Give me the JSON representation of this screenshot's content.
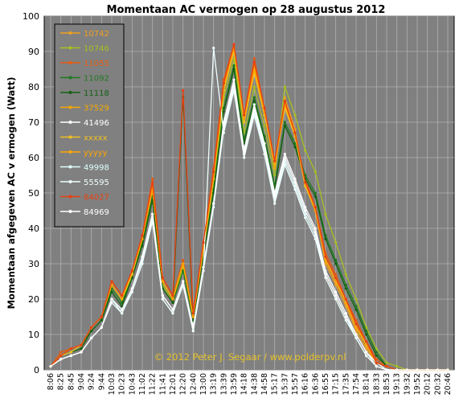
{
  "chart_data": {
    "type": "line",
    "title": "Momentaan  AC vermogen  op 28 augustus  2012",
    "ylabel": "Momentaan afgegeven AC v ermogen (Watt)",
    "xlabel": "",
    "ylim": [
      0,
      100
    ],
    "yticks": [
      0,
      10,
      20,
      30,
      40,
      50,
      60,
      70,
      80,
      90,
      100
    ],
    "grid": true,
    "legend_position": "top-left",
    "plot_background": "#808080",
    "x_tick_labels": [
      "8:06",
      "8:25",
      "8:45",
      "9:04",
      "9:24",
      "9:44",
      "10:03",
      "10:23",
      "10:43",
      "11:02",
      "11:22",
      "11:41",
      "12:01",
      "12:20",
      "12:40",
      "13:00",
      "13:19",
      "13:39",
      "13:59",
      "14:18",
      "14:38",
      "14:58",
      "15:17",
      "15:37",
      "15:57",
      "16:16",
      "16:36",
      "16:55",
      "17:15",
      "17:35",
      "17:54",
      "18:14",
      "18:33",
      "18:53",
      "19:13",
      "19:32",
      "19:52",
      "20:12",
      "20:32",
      "20:46"
    ],
    "x": [
      "8:06",
      "8:25",
      "8:45",
      "9:04",
      "9:24",
      "9:44",
      "10:03",
      "10:23",
      "10:43",
      "11:02",
      "11:22",
      "11:41",
      "12:01",
      "12:20",
      "12:40",
      "13:00",
      "13:19",
      "13:39",
      "13:59",
      "14:18",
      "14:38",
      "14:58",
      "15:17",
      "15:37",
      "15:57",
      "16:16",
      "16:36",
      "16:55",
      "17:15",
      "17:35",
      "17:54",
      "18:14",
      "18:33",
      "18:53",
      "19:13",
      "19:32",
      "19:52",
      "20:12",
      "20:32",
      "20:46"
    ],
    "series": [
      {
        "name": "10742",
        "color": "#f0a020",
        "values": [
          1,
          4,
          6,
          7,
          12,
          15,
          24,
          20,
          28,
          38,
          52,
          25,
          20,
          30,
          15,
          35,
          55,
          80,
          92,
          70,
          84,
          72,
          58,
          77,
          68,
          52,
          45,
          30,
          24,
          18,
          11,
          6,
          2,
          1,
          0,
          0,
          0,
          0,
          0,
          0
        ]
      },
      {
        "name": "10746",
        "color": "#a8c020",
        "values": [
          1,
          4,
          5,
          6,
          11,
          14,
          23,
          19,
          27,
          36,
          49,
          24,
          19,
          29,
          14,
          33,
          52,
          77,
          88,
          67,
          80,
          69,
          55,
          80,
          72,
          62,
          56,
          44,
          36,
          27,
          20,
          12,
          6,
          2,
          1,
          0,
          0,
          0,
          0,
          0
        ]
      },
      {
        "name": "11055",
        "color": "#e85a10",
        "values": [
          1,
          5,
          6,
          7,
          12,
          15,
          25,
          21,
          28,
          38,
          54,
          26,
          21,
          31,
          16,
          36,
          57,
          82,
          92,
          72,
          88,
          74,
          59,
          76,
          66,
          54,
          46,
          33,
          27,
          20,
          14,
          8,
          3,
          1,
          0,
          0,
          0,
          0,
          0,
          0
        ]
      },
      {
        "name": "11092",
        "color": "#1e7a1e",
        "values": [
          1,
          4,
          5,
          7,
          11,
          14,
          23,
          19,
          26,
          36,
          49,
          23,
          19,
          28,
          14,
          32,
          51,
          74,
          86,
          65,
          77,
          66,
          52,
          70,
          64,
          55,
          50,
          38,
          31,
          24,
          18,
          11,
          5,
          1,
          0,
          0,
          0,
          0,
          0,
          0
        ]
      },
      {
        "name": "11118",
        "color": "#156015",
        "values": [
          1,
          4,
          5,
          6,
          11,
          14,
          22,
          18,
          26,
          35,
          48,
          23,
          19,
          77,
          14,
          32,
          50,
          73,
          85,
          64,
          76,
          65,
          51,
          69,
          63,
          54,
          49,
          37,
          30,
          23,
          17,
          10,
          4,
          1,
          0,
          0,
          0,
          0,
          0,
          0
        ]
      },
      {
        "name": "37529",
        "color": "#f5a800",
        "values": [
          1,
          4,
          6,
          7,
          12,
          15,
          24,
          20,
          27,
          37,
          51,
          25,
          20,
          30,
          15,
          34,
          54,
          79,
          90,
          70,
          86,
          73,
          57,
          75,
          66,
          52,
          45,
          32,
          26,
          19,
          13,
          7,
          2,
          1,
          0,
          0,
          0,
          0,
          0,
          0
        ]
      },
      {
        "name": "41496",
        "color": "#ffffff",
        "values": [
          1,
          3,
          4,
          5,
          9,
          12,
          20,
          17,
          23,
          32,
          44,
          21,
          17,
          25,
          12,
          29,
          47,
          70,
          82,
          62,
          75,
          64,
          50,
          61,
          54,
          46,
          40,
          28,
          22,
          16,
          10,
          5,
          2,
          0,
          0,
          0,
          0,
          0,
          0,
          0
        ]
      },
      {
        "name": "xxxxx",
        "color": "#f0c020",
        "values": [
          1,
          4,
          5,
          7,
          12,
          15,
          24,
          20,
          27,
          37,
          51,
          25,
          20,
          30,
          15,
          34,
          54,
          79,
          90,
          70,
          84,
          72,
          58,
          74,
          66,
          52,
          45,
          31,
          26,
          19,
          12,
          7,
          2,
          1,
          0,
          0,
          0,
          0,
          0,
          0
        ]
      },
      {
        "name": "yyyyy",
        "color": "#ffa500",
        "values": [
          1,
          4,
          6,
          7,
          12,
          15,
          24,
          20,
          28,
          37,
          51,
          25,
          20,
          30,
          15,
          35,
          55,
          80,
          91,
          71,
          85,
          73,
          58,
          75,
          67,
          53,
          45,
          31,
          25,
          19,
          12,
          7,
          2,
          1,
          0,
          0,
          0,
          0,
          0,
          0
        ]
      },
      {
        "name": "49998",
        "color": "#e0ffff",
        "values": [
          1,
          3,
          4,
          5,
          9,
          12,
          20,
          16,
          23,
          31,
          43,
          20,
          16,
          24,
          11,
          28,
          46,
          68,
          80,
          61,
          73,
          62,
          48,
          59,
          52,
          44,
          38,
          27,
          21,
          15,
          9,
          4,
          1,
          0,
          0,
          0,
          0,
          0,
          0,
          0
        ]
      },
      {
        "name": "55595",
        "color": "#f0ffff",
        "values": [
          1,
          3,
          4,
          5,
          9,
          12,
          19,
          16,
          22,
          30,
          42,
          20,
          16,
          24,
          11,
          28,
          91,
          67,
          79,
          60,
          72,
          61,
          47,
          58,
          51,
          43,
          37,
          26,
          20,
          14,
          9,
          4,
          1,
          0,
          0,
          0,
          0,
          0,
          0,
          0
        ]
      },
      {
        "name": "84027",
        "color": "#e84010",
        "values": [
          1,
          4,
          6,
          7,
          12,
          15,
          25,
          21,
          28,
          38,
          53,
          26,
          21,
          79,
          16,
          36,
          56,
          81,
          92,
          72,
          87,
          74,
          59,
          76,
          67,
          53,
          46,
          32,
          26,
          20,
          13,
          8,
          2,
          1,
          0,
          0,
          0,
          0,
          0,
          0
        ]
      },
      {
        "name": "84969",
        "color": "#ffffff",
        "values": [
          1,
          3,
          4,
          5,
          9,
          12,
          20,
          17,
          23,
          32,
          44,
          21,
          17,
          25,
          12,
          29,
          47,
          69,
          81,
          61,
          74,
          63,
          49,
          60,
          53,
          45,
          39,
          27,
          21,
          15,
          10,
          5,
          1,
          0,
          0,
          0,
          0,
          0,
          0,
          0
        ]
      }
    ],
    "annotations": [
      "© 2012 Peter J. Segaar / www.polderpv.nl"
    ]
  }
}
